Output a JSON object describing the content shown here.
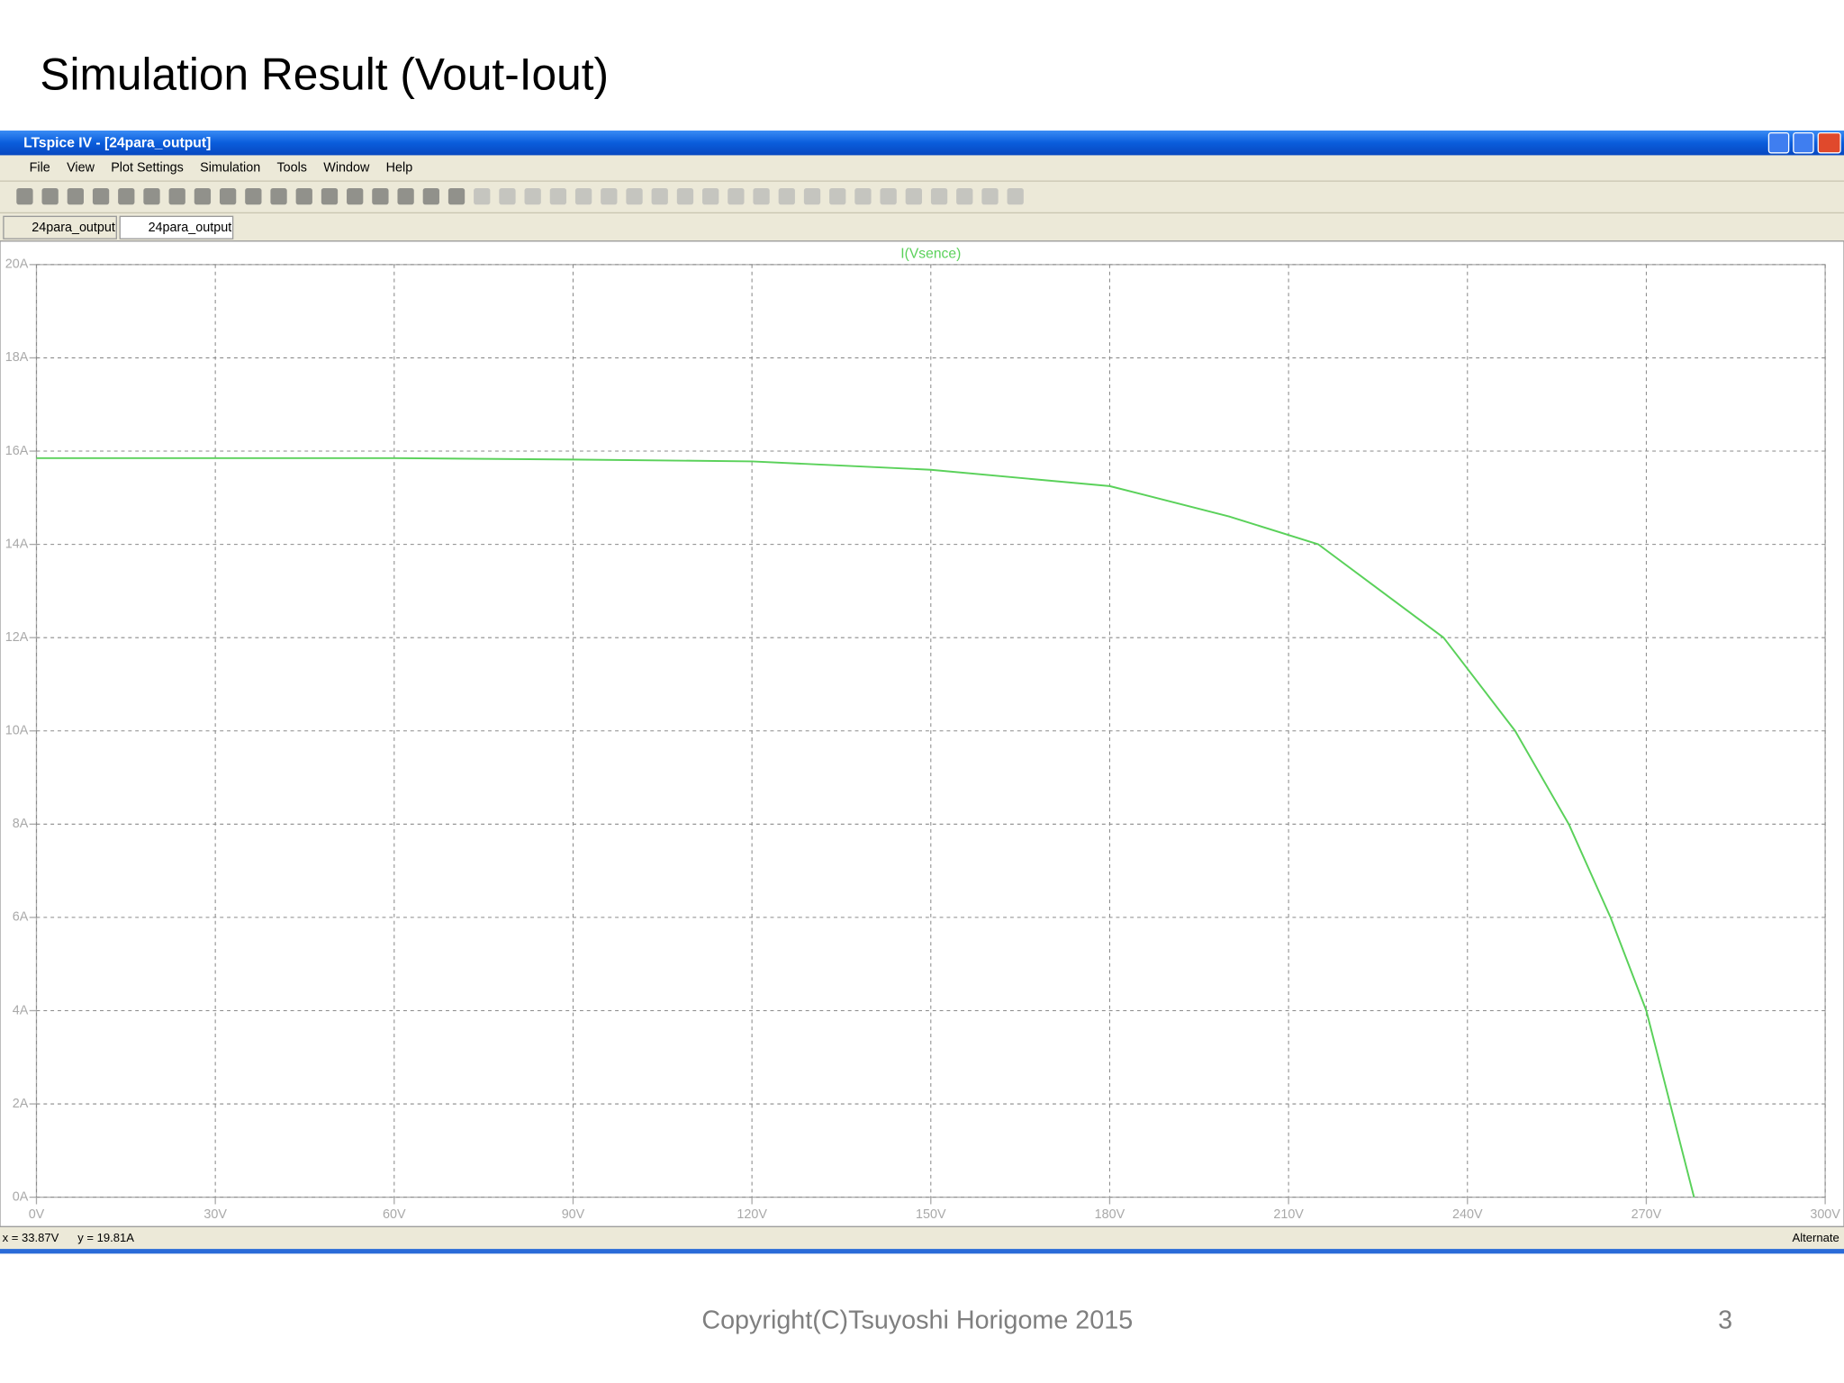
{
  "slide": {
    "title": "Simulation Result (Vout-Iout)",
    "footer": "Copyright(C)Tsuyoshi Horigome 2015",
    "page_number": "3"
  },
  "window": {
    "title": "LTspice IV - [24para_output]",
    "menu": [
      "File",
      "View",
      "Plot Settings",
      "Simulation",
      "Tools",
      "Window",
      "Help"
    ],
    "tabs": [
      "24para_output",
      "24para_output"
    ],
    "status": {
      "cursor_x": "x = 33.87V",
      "cursor_y": "y = 19.81A",
      "mode": "Alternate"
    }
  },
  "chart_data": {
    "type": "line",
    "xlim": [
      0,
      300
    ],
    "xticks": [
      {
        "value": 0,
        "label": "0V"
      },
      {
        "value": 30,
        "label": "30V"
      },
      {
        "value": 60,
        "label": "60V"
      },
      {
        "value": 90,
        "label": "90V"
      },
      {
        "value": 120,
        "label": "120V"
      },
      {
        "value": 150,
        "label": "150V"
      },
      {
        "value": 180,
        "label": "180V"
      },
      {
        "value": 210,
        "label": "210V"
      },
      {
        "value": 240,
        "label": "240V"
      },
      {
        "value": 270,
        "label": "270V"
      },
      {
        "value": 300,
        "label": "300V"
      }
    ],
    "ylim": [
      0,
      20
    ],
    "yticks": [
      {
        "value": 0,
        "label": "0A"
      },
      {
        "value": 2,
        "label": "2A"
      },
      {
        "value": 4,
        "label": "4A"
      },
      {
        "value": 6,
        "label": "6A"
      },
      {
        "value": 8,
        "label": "8A"
      },
      {
        "value": 10,
        "label": "10A"
      },
      {
        "value": 12,
        "label": "12A"
      },
      {
        "value": 14,
        "label": "14A"
      },
      {
        "value": 16,
        "label": "16A"
      },
      {
        "value": 18,
        "label": "18A"
      },
      {
        "value": 20,
        "label": "20A"
      }
    ],
    "grid": true,
    "x": [
      0,
      30,
      60,
      90,
      120,
      150,
      180,
      200,
      215,
      236,
      248,
      257,
      264,
      270,
      278
    ],
    "series": [
      {
        "name": "I(Vsence)",
        "color": "#5ad15a",
        "values": [
          15.85,
          15.85,
          15.85,
          15.82,
          15.78,
          15.6,
          15.25,
          14.6,
          14,
          12,
          10,
          8,
          6,
          4,
          0
        ]
      }
    ]
  }
}
